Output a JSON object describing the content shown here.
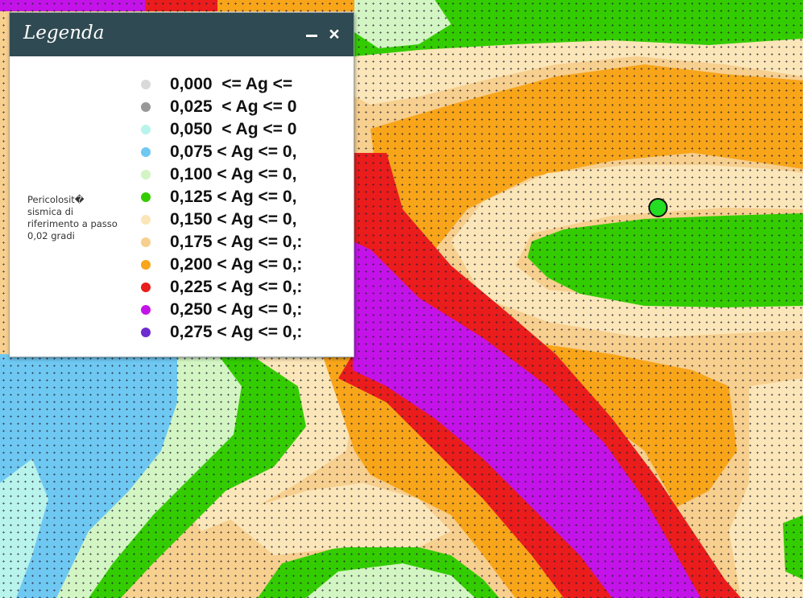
{
  "legend": {
    "title": "Legenda",
    "layer_title": "Pericolosit� sismica di riferimento a passo 0,02 gradi",
    "items": [
      {
        "label": "0,000  <= Ag <=",
        "color": "#d9d9d9"
      },
      {
        "label": "0,025  < Ag <= 0",
        "color": "#999999"
      },
      {
        "label": "0,050  < Ag <= 0",
        "color": "#b8f3ec"
      },
      {
        "label": "0,075 < Ag <= 0,",
        "color": "#6ec8f2"
      },
      {
        "label": "0,100 < Ag <= 0,",
        "color": "#d3f5c3"
      },
      {
        "label": "0,125 < Ag <= 0,",
        "color": "#33cc00"
      },
      {
        "label": "0,150 < Ag <= 0,",
        "color": "#fbe6b9"
      },
      {
        "label": "0,175 < Ag <= 0,:",
        "color": "#f7cf8e"
      },
      {
        "label": "0,200 < Ag <= 0,:",
        "color": "#f8a51a"
      },
      {
        "label": "0,225 < Ag <= 0,:",
        "color": "#ea1c1c"
      },
      {
        "label": "0,250 < Ag <= 0,:",
        "color": "#c313e8"
      },
      {
        "label": "0,275 < Ag <= 0,:",
        "color": "#6f2ccf"
      }
    ]
  },
  "map": {
    "marker_color": "#22dd22"
  }
}
